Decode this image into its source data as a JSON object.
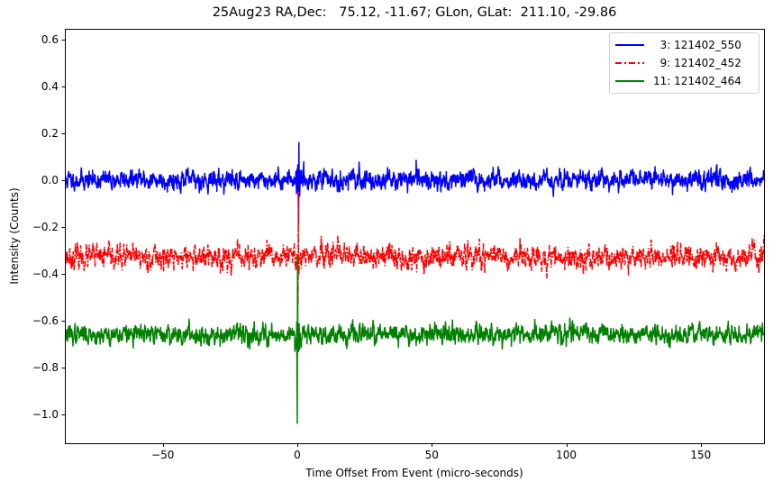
{
  "chart_data": {
    "type": "line",
    "title": "25Aug23 RA,Dec:   75.12, -11.67; GLon, GLat:  211.10, -29.86",
    "xlabel": "Time Offset From Event (micro-seconds)",
    "ylabel": "Intensity (Counts)",
    "xlim": [
      -86.4,
      173.5
    ],
    "ylim": [
      -1.125,
      0.646
    ],
    "xticks": [
      -50,
      0,
      50,
      100,
      150
    ],
    "xtick_labels": [
      "−50",
      "0",
      "50",
      "100",
      "150"
    ],
    "yticks": [
      0.6,
      0.4,
      0.2,
      0.0,
      -0.2,
      -0.4,
      -0.6,
      -0.8,
      -1.0
    ],
    "ytick_labels": [
      "0.6",
      "0.4",
      "0.2",
      "0.0",
      "−0.2",
      "−0.4",
      "−0.6",
      "−0.8",
      "−1.0"
    ],
    "grid": false,
    "legend_position": "upper right",
    "series": [
      {
        "name": "  3: 121402_550",
        "color": "#0000ff",
        "linestyle": "solid",
        "baseline": 0.0,
        "noise_range": [
          -0.08,
          0.08
        ],
        "event_extremes": {
          "min": -0.19,
          "max": 0.16,
          "x": 0.5
        },
        "seed": 11
      },
      {
        "name": "  9: 121402_452",
        "color": "#ff0000",
        "linestyle": "dashdot",
        "baseline": -0.33,
        "noise_range": [
          -0.43,
          -0.23
        ],
        "event_extremes": {
          "min": -0.53,
          "max": -0.05,
          "x": 0.3
        },
        "seed": 23
      },
      {
        "name": "11: 121402_464",
        "color": "#008000",
        "linestyle": "solid",
        "baseline": -0.66,
        "noise_range": [
          -0.74,
          -0.58
        ],
        "event_extremes": {
          "min": -1.04,
          "max": -0.33,
          "x": 0.0
        },
        "seed": 37
      }
    ]
  }
}
